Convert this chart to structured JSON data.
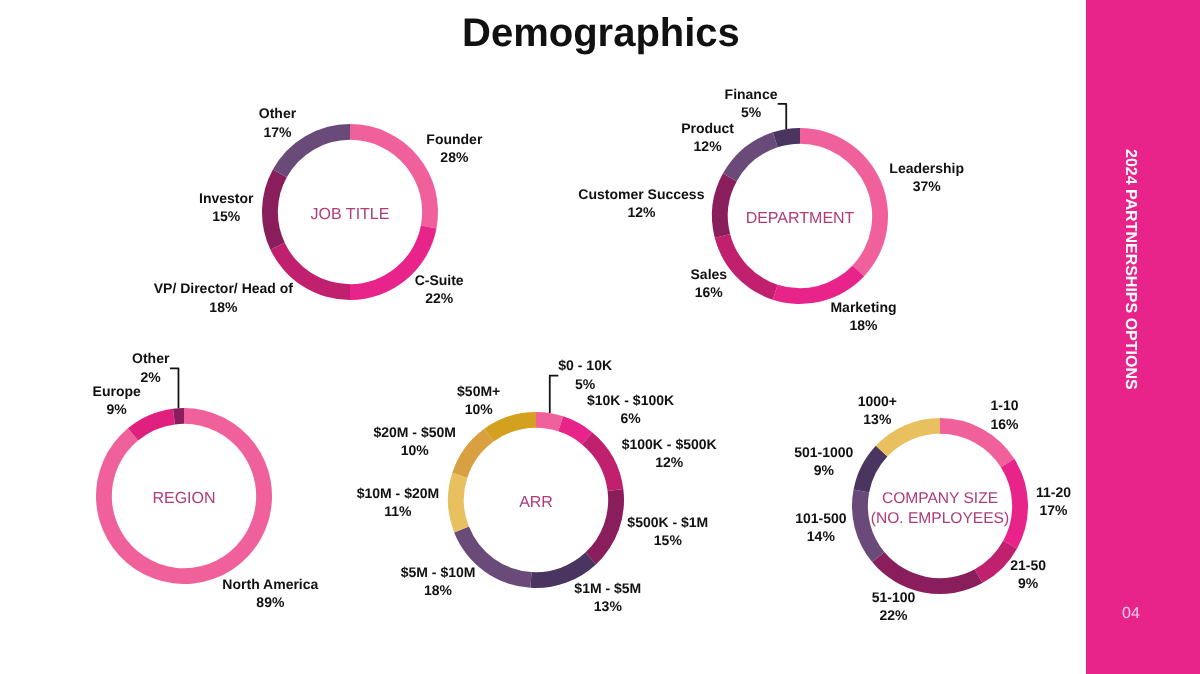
{
  "chart_data": [
    {
      "type": "other",
      "title": "Demographics",
      "color": "#e8238a",
      "annotations": [
        "2024 PARTNERSHIPS OPTIONS",
        "04"
      ]
    },
    {
      "type": "donut",
      "title": "JOB TITLE",
      "categories": [
        "Founder",
        "C-Suite",
        "VP/ Director/ Head of",
        "Investor",
        "Other"
      ],
      "values": [
        28,
        22,
        18,
        15,
        17
      ],
      "value_labels": [
        "28%",
        "22%",
        "18%",
        "15%",
        "17%"
      ],
      "colors": [
        "#f0609a",
        "#e8238a",
        "#c0206e",
        "#8a1d5c",
        "#6a4a78"
      ]
    },
    {
      "type": "donut",
      "title": "DEPARTMENT",
      "categories": [
        "Leadership",
        "Marketing",
        "Sales",
        "Customer Success",
        "Product",
        "Finance"
      ],
      "values": [
        37,
        18,
        16,
        12,
        12,
        5
      ],
      "value_labels": [
        "37%",
        "18%",
        "16%",
        "12%",
        "12%",
        "5%"
      ],
      "colors": [
        "#f0609a",
        "#e8238a",
        "#c0206e",
        "#8a1d5c",
        "#6a4a78",
        "#4a3560"
      ]
    },
    {
      "type": "donut",
      "title": "REGION",
      "categories": [
        "North America",
        "Europe",
        "Other"
      ],
      "values": [
        89,
        9,
        2
      ],
      "value_labels": [
        "89%",
        "9%",
        "2%"
      ],
      "colors": [
        "#f0609a",
        "#e0207e",
        "#8a1d5c"
      ]
    },
    {
      "type": "donut",
      "title": "ARR",
      "categories": [
        "$0 - 10K",
        "$10K - $100K",
        "$100K - $500K",
        "$500K - $1M",
        "$1M - $5M",
        "$5M - $10M",
        "$10M - $20M",
        "$20M - $50M",
        "$50M+"
      ],
      "values": [
        5,
        6,
        12,
        15,
        13,
        18,
        11,
        10,
        10
      ],
      "value_labels": [
        "5%",
        "6%",
        "12%",
        "15%",
        "13%",
        "18%",
        "11%",
        "10%",
        "10%"
      ],
      "colors": [
        "#f0609a",
        "#e8238a",
        "#c0206e",
        "#8a1d5c",
        "#4a3560",
        "#6a4a78",
        "#e8c060",
        "#d8a040",
        "#d4a020"
      ]
    },
    {
      "type": "donut",
      "title": "COMPANY SIZE (NO. EMPLOYEES)",
      "categories": [
        "1-10",
        "11-20",
        "21-50",
        "51-100",
        "101-500",
        "501-1000",
        "1000+"
      ],
      "values": [
        16,
        17,
        9,
        22,
        14,
        9,
        13
      ],
      "value_labels": [
        "16%",
        "17%",
        "9%",
        "22%",
        "14%",
        "9%",
        "13%"
      ],
      "colors": [
        "#f0609a",
        "#e8238a",
        "#c0206e",
        "#8a1d5c",
        "#6a4a78",
        "#4a3560",
        "#e8c060"
      ]
    }
  ]
}
